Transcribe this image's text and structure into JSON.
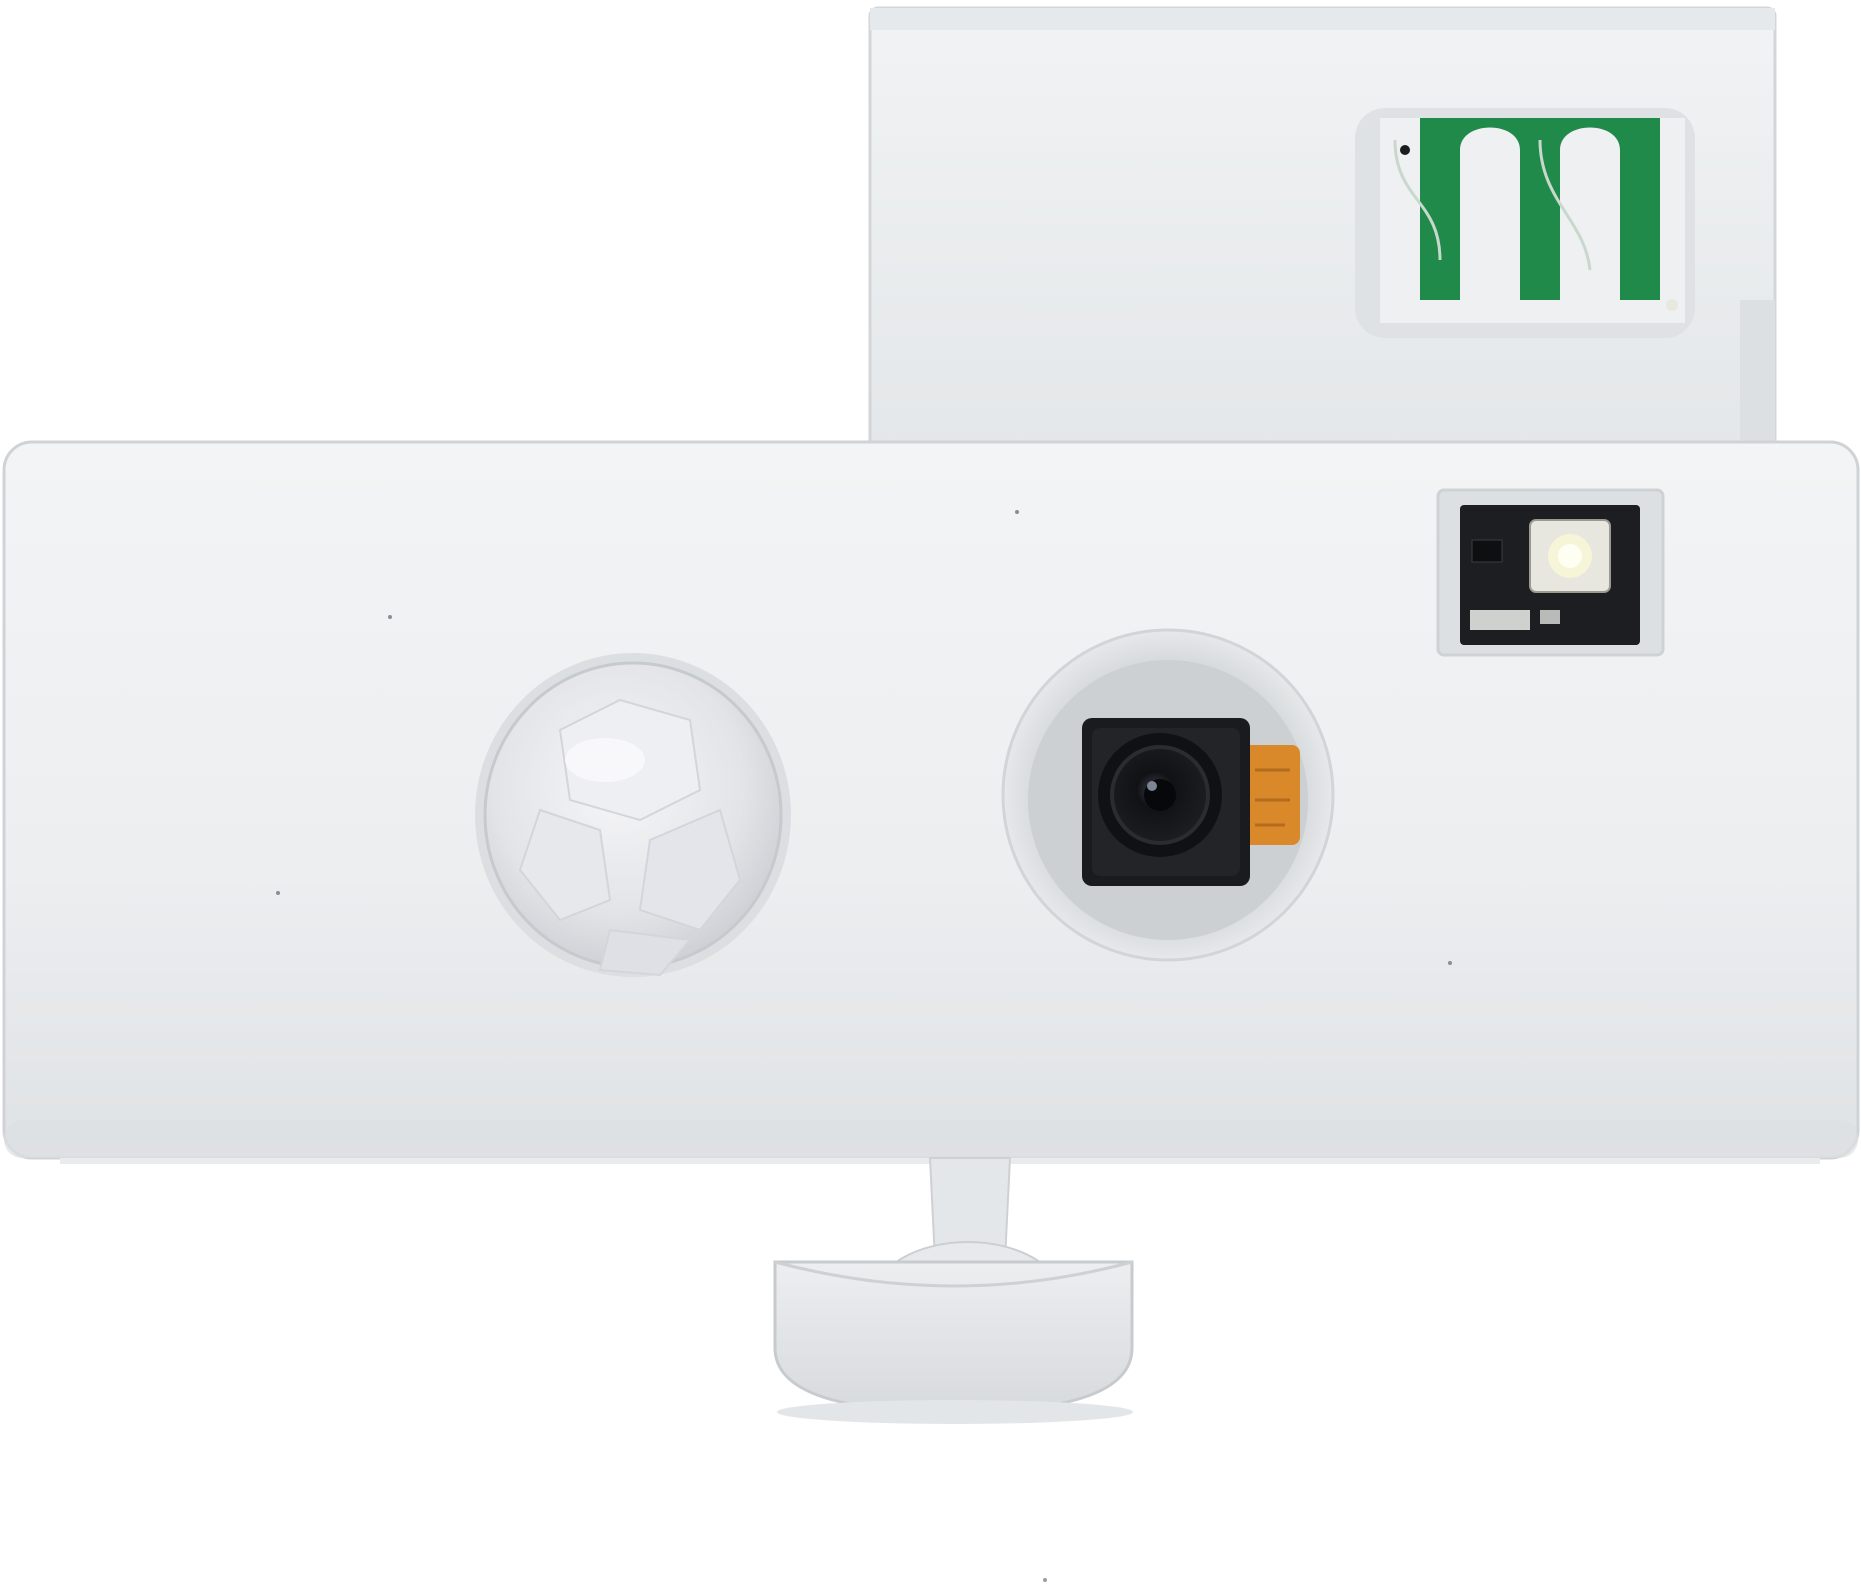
{
  "photo": {
    "subject": "3d-printed-camera-enclosure",
    "colors": {
      "background": "#ffffff",
      "plastic": "#eef0f1",
      "plastic_shadow": "#d9dcde",
      "plastic_edge": "#c9cdd0",
      "pcb_green": "#1f8a4a",
      "pcb_dark": "#1a1c1e",
      "lens_black": "#141414",
      "flex_orange": "#d9892a",
      "led_white": "#f3f2e9",
      "pir_dome": "#e9eaee"
    }
  }
}
